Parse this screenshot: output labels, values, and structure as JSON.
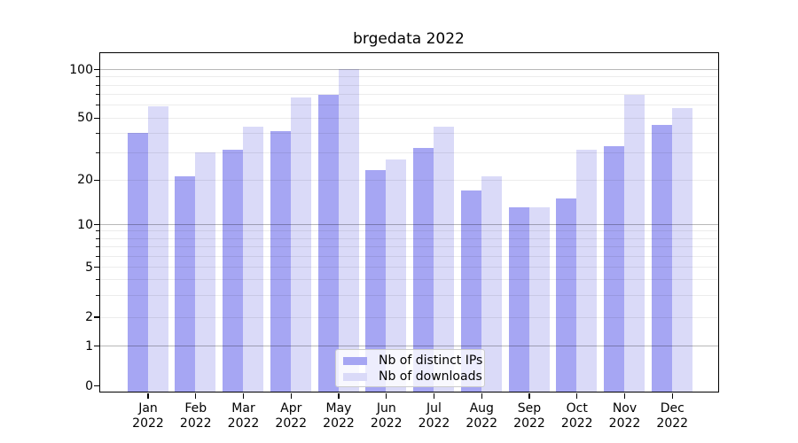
{
  "title": "brgedata 2022",
  "chart_data": {
    "type": "bar",
    "title": "brgedata 2022",
    "categories": [
      "Jan 2022",
      "Feb 2022",
      "Mar 2022",
      "Apr 2022",
      "May 2022",
      "Jun 2022",
      "Jul 2022",
      "Aug 2022",
      "Sep 2022",
      "Oct 2022",
      "Nov 2022",
      "Dec 2022"
    ],
    "x_tick_months": [
      "Jan",
      "Feb",
      "Mar",
      "Apr",
      "May",
      "Jun",
      "Jul",
      "Aug",
      "Sep",
      "Oct",
      "Nov",
      "Dec"
    ],
    "x_tick_year": "2022",
    "series": [
      {
        "name": "Nb of distinct IPs",
        "color": "#a6a6f3",
        "values": [
          40,
          21,
          31,
          41,
          69,
          23,
          32,
          17,
          13,
          15,
          33,
          45
        ]
      },
      {
        "name": "Nb of downloads",
        "color": "#dadaf8",
        "values": [
          59,
          30,
          44,
          67,
          100,
          27,
          44,
          21,
          13,
          31,
          69,
          57
        ]
      }
    ],
    "y_scale": "symlog",
    "y_ticks": [
      0,
      1,
      2,
      5,
      10,
      20,
      50,
      100
    ],
    "y_tick_labels": [
      "0",
      "1",
      "2",
      "5",
      "10",
      "20",
      "50",
      "100"
    ],
    "ylim": [
      0,
      130
    ],
    "grid": {
      "major_values": [
        1,
        10,
        100
      ],
      "minor_values": [
        2,
        3,
        4,
        5,
        6,
        7,
        8,
        9,
        20,
        30,
        40,
        50,
        60,
        70,
        80,
        90
      ],
      "major_color": "#b0b0b0",
      "minor_color": "#ececec"
    },
    "legend_position": "lower center",
    "legend_entries": [
      "Nb of distinct IPs",
      "Nb of downloads"
    ]
  }
}
